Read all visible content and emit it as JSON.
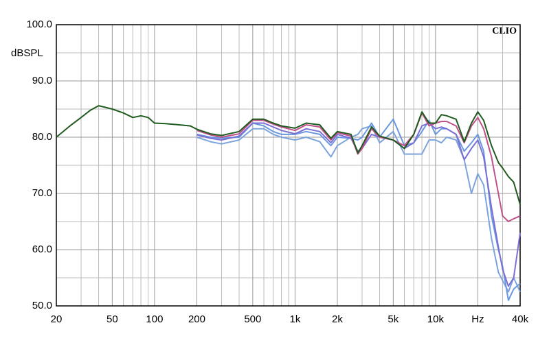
{
  "chart_data": {
    "type": "line",
    "brand": "CLIO",
    "y_label": "dBSPL",
    "x_log": true,
    "grid": true,
    "xlim": [
      20,
      40000
    ],
    "ylim": [
      50,
      100
    ],
    "xticks": [
      20,
      50,
      100,
      200,
      500,
      {
        "value": 1000,
        "label": "1k"
      },
      {
        "value": 2000,
        "label": "2k"
      },
      {
        "value": 5000,
        "label": "5k"
      },
      {
        "value": 10000,
        "label": "10k"
      },
      {
        "value": 20000,
        "label": "Hz"
      },
      {
        "value": 40000,
        "label": "40k"
      }
    ],
    "xminor": [
      30,
      40,
      60,
      70,
      80,
      90,
      300,
      400,
      600,
      700,
      800,
      900,
      3000,
      4000,
      6000,
      7000,
      8000,
      9000,
      30000
    ],
    "yticks": [
      {
        "value": 100,
        "label": "100.0"
      },
      {
        "value": 90,
        "label": "90.0"
      },
      {
        "value": 80,
        "label": "80.0"
      },
      {
        "value": 70,
        "label": "70.0"
      },
      {
        "value": 60,
        "label": "60.0"
      },
      {
        "value": 50,
        "label": "50.0"
      }
    ],
    "yminor": [
      95,
      85,
      75,
      65,
      55
    ],
    "x": [
      20,
      25,
      30,
      35,
      40,
      50,
      60,
      70,
      80,
      90,
      100,
      120,
      150,
      180,
      200,
      250,
      300,
      400,
      500,
      600,
      700,
      800,
      1000,
      1200,
      1500,
      1800,
      2000,
      2500,
      2800,
      3000,
      3500,
      4000,
      5000,
      6000,
      7000,
      8000,
      9000,
      10000,
      11000,
      12000,
      14000,
      16000,
      18000,
      20000,
      22000,
      25000,
      28000,
      30000,
      33000,
      36000,
      40000
    ],
    "series": [
      {
        "color": "#7ba3dc",
        "values": [
          null,
          null,
          null,
          null,
          null,
          null,
          null,
          null,
          null,
          null,
          null,
          null,
          null,
          null,
          80.0,
          79.2,
          78.8,
          79.5,
          81.5,
          81.5,
          80.5,
          80.0,
          79.5,
          80.0,
          79.2,
          76.5,
          78.5,
          80.0,
          80.5,
          81.5,
          82.0,
          79.0,
          81.0,
          77.0,
          77.0,
          77.0,
          79.5,
          79.5,
          79.0,
          80.0,
          79.5,
          76.0,
          70.0,
          73.5,
          71.5,
          62.0,
          56.0,
          54.5,
          52.5,
          55.0,
          52.5
        ]
      },
      {
        "color": "#6a98e0",
        "values": [
          null,
          null,
          null,
          null,
          null,
          null,
          null,
          null,
          null,
          null,
          null,
          null,
          null,
          null,
          80.5,
          80.0,
          79.8,
          80.0,
          82.5,
          82.0,
          81.0,
          80.5,
          80.5,
          81.0,
          80.5,
          78.5,
          80.0,
          79.8,
          79.5,
          80.0,
          82.5,
          80.0,
          83.2,
          78.5,
          79.0,
          81.0,
          83.0,
          80.5,
          81.5,
          81.5,
          80.5,
          77.5,
          79.0,
          80.5,
          77.5,
          66.0,
          60.0,
          57.0,
          51.0,
          53.0,
          54.0
        ]
      },
      {
        "color": "#7a6fd6",
        "values": [
          null,
          null,
          null,
          null,
          null,
          null,
          null,
          null,
          null,
          null,
          null,
          null,
          null,
          null,
          80.4,
          79.8,
          79.5,
          80.2,
          82.5,
          82.5,
          81.8,
          81.2,
          80.6,
          81.5,
          81.0,
          79.0,
          80.5,
          79.8,
          77.5,
          78.0,
          80.5,
          80.0,
          79.5,
          78.0,
          79.0,
          82.0,
          82.5,
          81.5,
          81.8,
          81.5,
          80.5,
          76.0,
          78.0,
          79.5,
          76.5,
          67.5,
          60.5,
          56.5,
          53.5,
          55.0,
          63.0
        ]
      },
      {
        "color": "#c0508a",
        "values": [
          null,
          null,
          null,
          null,
          null,
          null,
          null,
          null,
          null,
          null,
          null,
          null,
          null,
          null,
          81.2,
          80.4,
          80.0,
          80.6,
          83.0,
          83.0,
          82.3,
          81.8,
          81.2,
          82.2,
          81.8,
          79.5,
          80.8,
          80.2,
          77.0,
          78.0,
          81.5,
          80.0,
          79.5,
          78.5,
          80.5,
          84.3,
          82.0,
          82.5,
          82.8,
          82.8,
          82.0,
          79.0,
          82.0,
          83.5,
          81.5,
          76.5,
          70.0,
          66.0,
          65.0,
          65.5,
          66.0
        ]
      },
      {
        "color": "#1f5a1f",
        "values": [
          80.0,
          82.0,
          83.5,
          84.8,
          85.6,
          85.0,
          84.3,
          83.5,
          83.8,
          83.5,
          82.5,
          82.4,
          82.2,
          82.0,
          81.4,
          80.6,
          80.3,
          81.0,
          83.2,
          83.2,
          82.5,
          82.0,
          81.6,
          82.5,
          82.2,
          79.8,
          81.0,
          80.5,
          77.2,
          78.5,
          81.8,
          80.2,
          79.5,
          78.0,
          80.5,
          84.5,
          82.5,
          82.5,
          84.0,
          83.8,
          83.2,
          79.2,
          82.5,
          84.5,
          83.0,
          78.5,
          75.5,
          74.5,
          73.0,
          72.0,
          68.0
        ]
      }
    ]
  }
}
